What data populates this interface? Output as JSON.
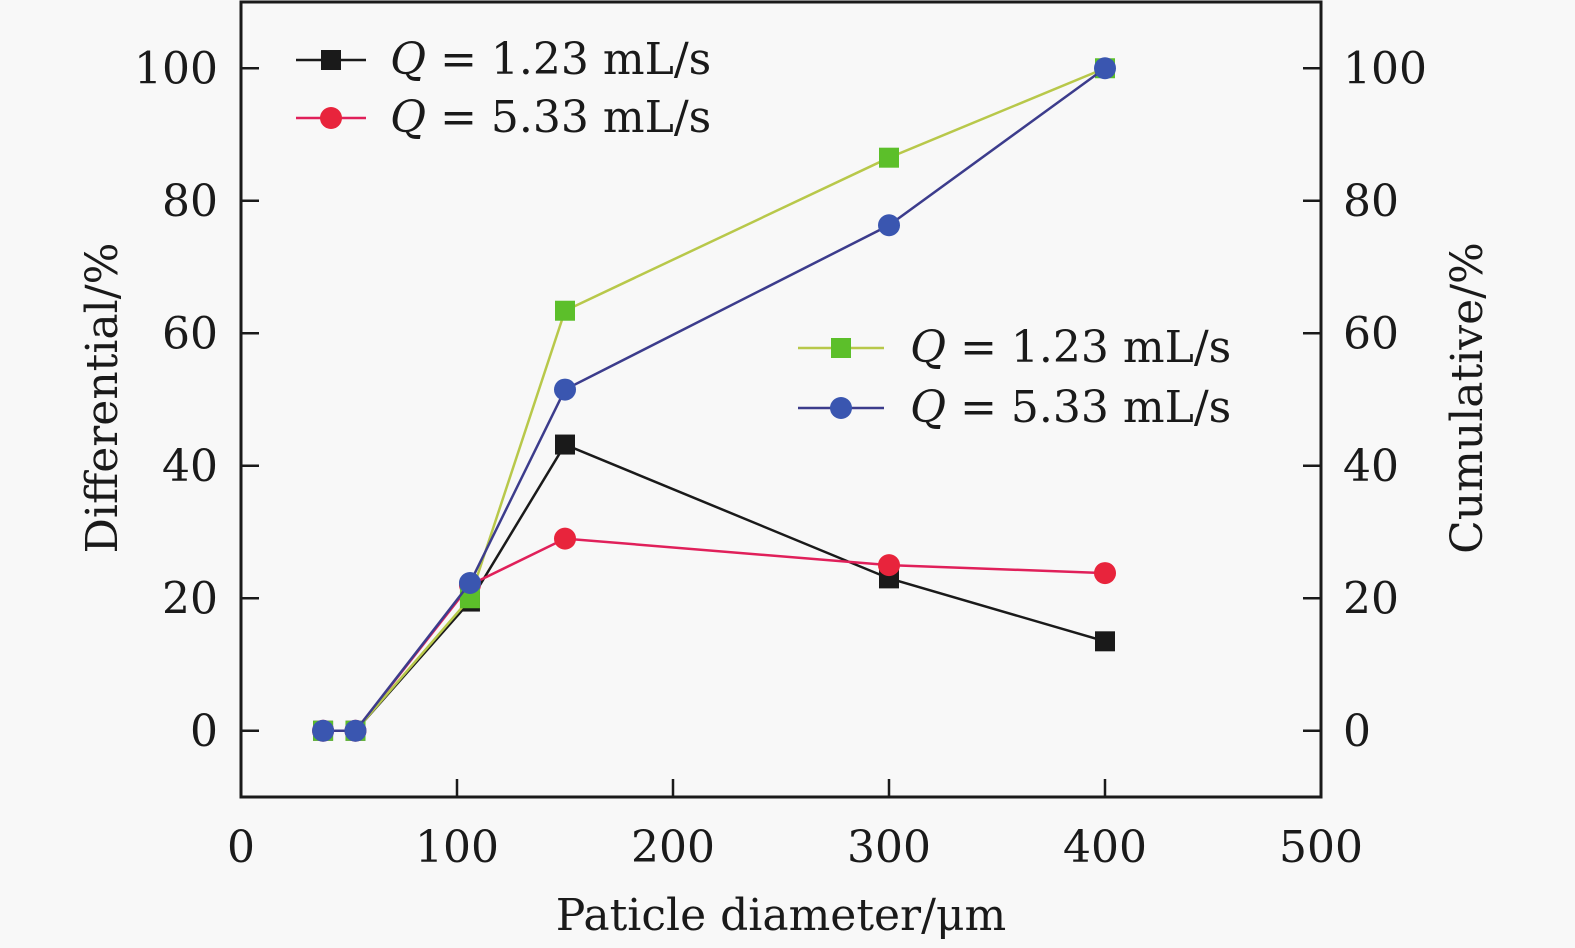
{
  "chart_data": {
    "type": "line",
    "title": "",
    "xlabel": "Paticle diameter/μm",
    "ylabel": "Differential/%",
    "y2label": "Cumulative/%",
    "xlim": [
      0,
      500
    ],
    "ylim": [
      -10,
      110
    ],
    "y2lim": [
      -10,
      110
    ],
    "xticks": [
      0,
      100,
      200,
      300,
      400,
      500
    ],
    "xtick_labels": [
      "0",
      "100",
      "200",
      "300",
      "400",
      "500"
    ],
    "yticks": [
      0,
      20,
      40,
      60,
      80,
      100
    ],
    "ytick_labels": [
      "0",
      "20",
      "40",
      "60",
      "80",
      "100"
    ],
    "y2ticks": [
      0,
      20,
      40,
      60,
      80,
      100
    ],
    "y2tick_labels": [
      "0",
      "20",
      "40",
      "60",
      "80",
      "100"
    ],
    "grid": false,
    "x": [
      38,
      53,
      106,
      150,
      300,
      400
    ],
    "series": [
      {
        "name": "Q = 1.23 mL/s",
        "axis": "left",
        "marker": "square",
        "color": "#1a1a1a",
        "line_color": "#1a1a1a",
        "values": [
          0,
          0,
          19.5,
          43.2,
          23,
          13.5
        ]
      },
      {
        "name": "Q = 5.33 mL/s",
        "axis": "left",
        "marker": "circle",
        "color": "#e8243c",
        "line_color": "#e0205a",
        "values": [
          0,
          0,
          22,
          29,
          25,
          23.8
        ]
      },
      {
        "name": "Q = 1.23 mL/s",
        "axis": "right",
        "marker": "square",
        "color": "#5cbf2a",
        "line_color": "#b8c84a",
        "values": [
          0,
          0,
          20,
          63.4,
          86.5,
          100
        ]
      },
      {
        "name": "Q = 5.33 mL/s",
        "axis": "right",
        "marker": "circle",
        "color": "#3a56b0",
        "line_color": "#3c3c8c",
        "values": [
          0,
          0,
          22.3,
          51.5,
          76.3,
          100
        ]
      }
    ],
    "legends": [
      {
        "placement": "top-left",
        "entries": [
          {
            "q": "Q",
            "rest": " = 1.23 mL/s",
            "series": 0
          },
          {
            "q": "Q",
            "rest": " = 5.33 mL/s",
            "series": 1
          }
        ]
      },
      {
        "placement": "center-right",
        "entries": [
          {
            "q": "Q",
            "rest": " = 1.23 mL/s",
            "series": 2
          },
          {
            "q": "Q",
            "rest": " = 5.33 mL/s",
            "series": 3
          }
        ]
      }
    ]
  }
}
